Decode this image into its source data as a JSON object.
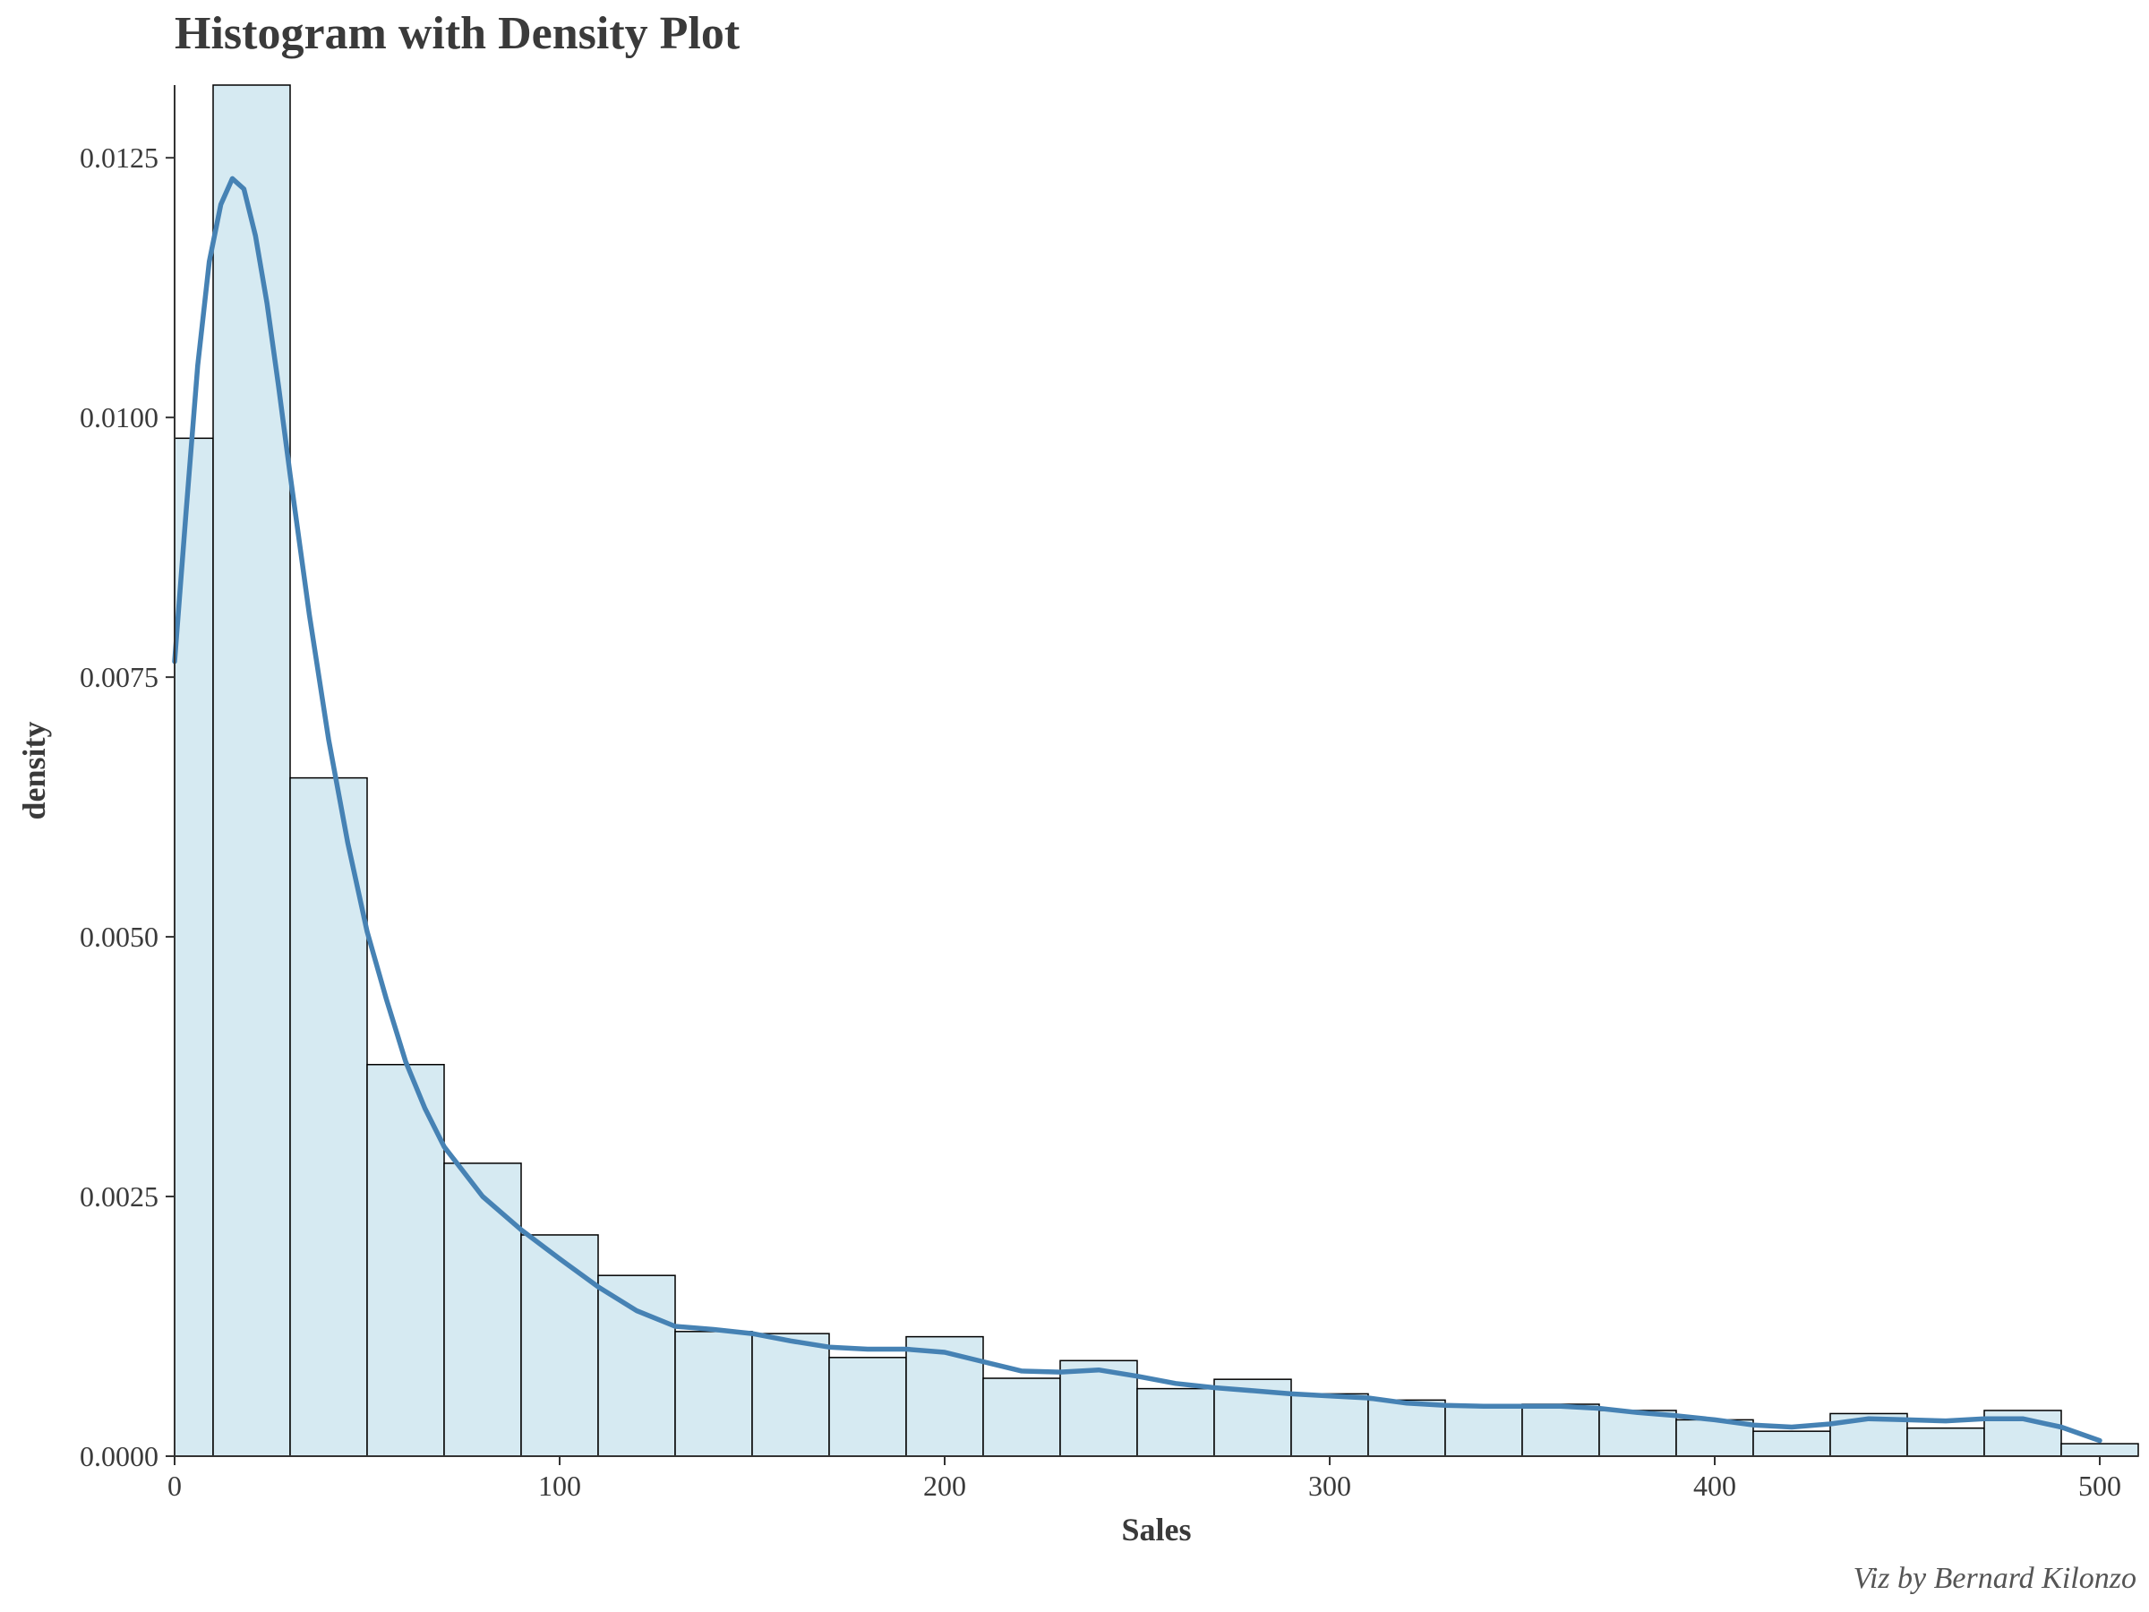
{
  "title": "Histogram with Density Plot",
  "caption": "Viz by Bernard Kilonzo",
  "colors": {
    "hist_fill": "#d6eaf2",
    "hist_outline": "#000000",
    "density_line": "#4682b4",
    "text": "#3a3a3a"
  },
  "chart_data": {
    "type": "bar",
    "subtype": "histogram-with-density",
    "xlabel": "Sales",
    "ylabel": "density",
    "xlim": [
      0,
      510
    ],
    "ylim": [
      0,
      0.0132
    ],
    "x_ticks": [
      0,
      100,
      200,
      300,
      400,
      500
    ],
    "y_ticks": [
      0.0,
      0.0025,
      0.005,
      0.0075,
      0.01,
      0.0125
    ],
    "y_tick_labels": [
      "0.0000",
      "0.0025",
      "0.0050",
      "0.0075",
      "0.0100",
      "0.0125"
    ],
    "bins": [
      {
        "x0": -10,
        "x1": 10,
        "density": 0.0098
      },
      {
        "x0": 10,
        "x1": 30,
        "density": 0.0132
      },
      {
        "x0": 30,
        "x1": 50,
        "density": 0.00653
      },
      {
        "x0": 50,
        "x1": 70,
        "density": 0.00377
      },
      {
        "x0": 70,
        "x1": 90,
        "density": 0.00282
      },
      {
        "x0": 90,
        "x1": 110,
        "density": 0.00213
      },
      {
        "x0": 110,
        "x1": 130,
        "density": 0.00174
      },
      {
        "x0": 130,
        "x1": 150,
        "density": 0.0012
      },
      {
        "x0": 150,
        "x1": 170,
        "density": 0.00118
      },
      {
        "x0": 170,
        "x1": 190,
        "density": 0.00095
      },
      {
        "x0": 190,
        "x1": 210,
        "density": 0.00115
      },
      {
        "x0": 210,
        "x1": 230,
        "density": 0.00075
      },
      {
        "x0": 230,
        "x1": 250,
        "density": 0.00092
      },
      {
        "x0": 250,
        "x1": 270,
        "density": 0.00065
      },
      {
        "x0": 270,
        "x1": 290,
        "density": 0.00074
      },
      {
        "x0": 290,
        "x1": 310,
        "density": 0.0006
      },
      {
        "x0": 310,
        "x1": 330,
        "density": 0.00054
      },
      {
        "x0": 330,
        "x1": 350,
        "density": 0.00049
      },
      {
        "x0": 350,
        "x1": 370,
        "density": 0.0005
      },
      {
        "x0": 370,
        "x1": 390,
        "density": 0.00044
      },
      {
        "x0": 390,
        "x1": 410,
        "density": 0.00035
      },
      {
        "x0": 410,
        "x1": 430,
        "density": 0.00024
      },
      {
        "x0": 430,
        "x1": 450,
        "density": 0.00041
      },
      {
        "x0": 450,
        "x1": 470,
        "density": 0.00027
      },
      {
        "x0": 470,
        "x1": 490,
        "density": 0.00044
      },
      {
        "x0": 490,
        "x1": 510,
        "density": 0.00012
      }
    ],
    "density_curve": {
      "x": [
        0,
        3,
        6,
        9,
        12,
        15,
        18,
        21,
        24,
        27,
        30,
        35,
        40,
        45,
        50,
        55,
        60,
        65,
        70,
        80,
        90,
        100,
        110,
        120,
        130,
        140,
        150,
        160,
        170,
        180,
        190,
        200,
        210,
        220,
        230,
        240,
        250,
        260,
        270,
        280,
        290,
        300,
        310,
        320,
        330,
        340,
        350,
        360,
        370,
        380,
        390,
        400,
        410,
        420,
        430,
        440,
        450,
        460,
        470,
        480,
        490,
        500
      ],
      "y": [
        0.00765,
        0.0091,
        0.0105,
        0.0115,
        0.01205,
        0.0123,
        0.0122,
        0.01175,
        0.0111,
        0.0103,
        0.00945,
        0.0081,
        0.0069,
        0.0059,
        0.00505,
        0.0044,
        0.0038,
        0.00335,
        0.00298,
        0.0025,
        0.00218,
        0.0019,
        0.00163,
        0.0014,
        0.00125,
        0.00122,
        0.00118,
        0.00111,
        0.00105,
        0.00103,
        0.00103,
        0.001,
        0.00091,
        0.00082,
        0.00081,
        0.00083,
        0.00077,
        0.0007,
        0.00066,
        0.00063,
        0.0006,
        0.00058,
        0.00056,
        0.00051,
        0.00049,
        0.00048,
        0.00048,
        0.00048,
        0.00046,
        0.00042,
        0.00039,
        0.00035,
        0.0003,
        0.00028,
        0.00031,
        0.00036,
        0.00035,
        0.00034,
        0.00036,
        0.00036,
        0.00028,
        0.00015
      ]
    }
  }
}
